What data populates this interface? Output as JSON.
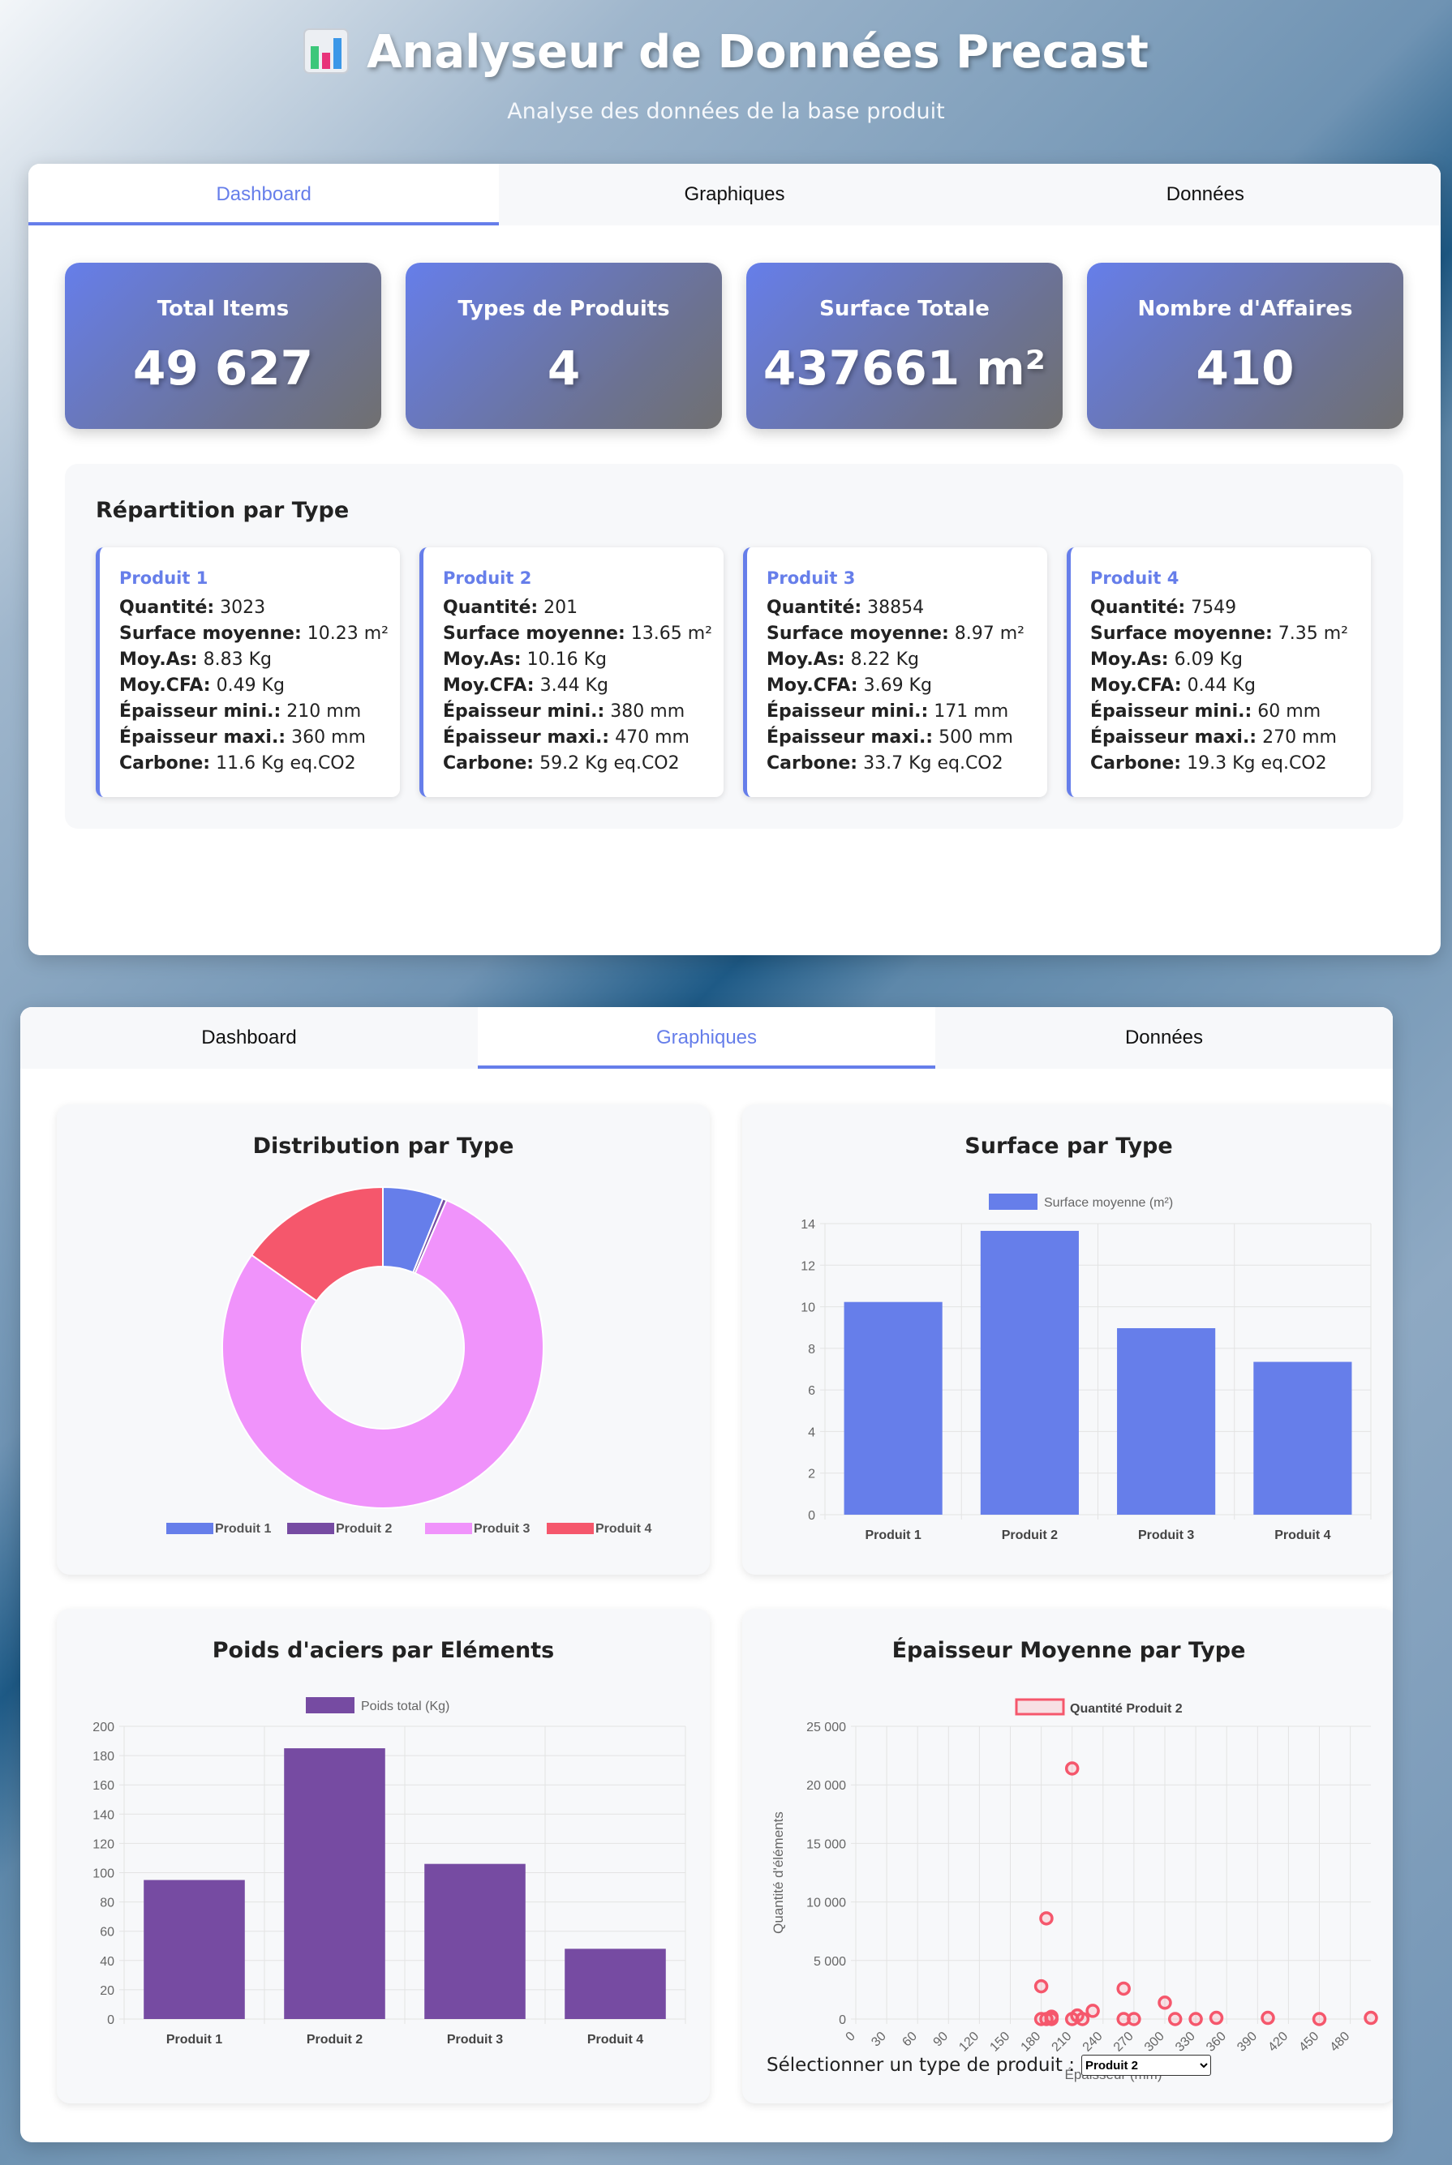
{
  "header": {
    "title": "Analyseur de Données Precast",
    "subtitle": "Analyse des données de la base produit",
    "logo_icon": "bar-chart-icon"
  },
  "tabs": [
    "Dashboard",
    "Graphiques",
    "Données"
  ],
  "stats": [
    {
      "label": "Total Items",
      "value": "49 627"
    },
    {
      "label": "Types de Produits",
      "value": "4"
    },
    {
      "label": "Surface Totale",
      "value": "437661 m²"
    },
    {
      "label": "Nombre d'Affaires",
      "value": "410"
    }
  ],
  "repartition": {
    "title": "Répartition par Type",
    "labels": {
      "quantite": "Quantité:",
      "surface": "Surface moyenne:",
      "moy_as": "Moy.As:",
      "moy_cfa": "Moy.CFA:",
      "ep_min": "Épaisseur mini.:",
      "ep_max": "Épaisseur maxi.:",
      "carbone": "Carbone:"
    },
    "types": [
      {
        "name": "Produit 1",
        "quantite": "3023",
        "surface": "10.23 m²",
        "moy_as": "8.83 Kg",
        "moy_cfa": "0.49 Kg",
        "ep_min": "210 mm",
        "ep_max": "360 mm",
        "carbone": "11.6 Kg eq.CO2"
      },
      {
        "name": "Produit 2",
        "quantite": "201",
        "surface": "13.65 m²",
        "moy_as": "10.16 Kg",
        "moy_cfa": "3.44 Kg",
        "ep_min": "380 mm",
        "ep_max": "470 mm",
        "carbone": "59.2 Kg eq.CO2"
      },
      {
        "name": "Produit 3",
        "quantite": "38854",
        "surface": "8.97 m²",
        "moy_as": "8.22 Kg",
        "moy_cfa": "3.69 Kg",
        "ep_min": "171 mm",
        "ep_max": "500 mm",
        "carbone": "33.7 Kg eq.CO2"
      },
      {
        "name": "Produit 4",
        "quantite": "7549",
        "surface": "7.35 m²",
        "moy_as": "6.09 Kg",
        "moy_cfa": "0.44 Kg",
        "ep_min": "60 mm",
        "ep_max": "270 mm",
        "carbone": "19.3 Kg eq.CO2"
      }
    ]
  },
  "colors": {
    "accent": "#667eea",
    "purple": "#764ba2",
    "pink": "#f093fb",
    "red": "#f5576c"
  },
  "chart_data": [
    {
      "type": "pie",
      "title": "Distribution par Type",
      "categories": [
        "Produit 1",
        "Produit 2",
        "Produit 3",
        "Produit 4"
      ],
      "values": [
        3023,
        201,
        38854,
        7549
      ],
      "colors": [
        "#667eea",
        "#764ba2",
        "#f093fb",
        "#f5576c"
      ],
      "legend": "bottom"
    },
    {
      "type": "bar",
      "title": "Surface par Type",
      "categories": [
        "Produit 1",
        "Produit 2",
        "Produit 3",
        "Produit 4"
      ],
      "series": [
        {
          "name": "Surface moyenne (m²)",
          "values": [
            10.23,
            13.65,
            8.97,
            7.35
          ]
        }
      ],
      "ylim": [
        0,
        14
      ],
      "yticks": [
        "0",
        "2",
        "4",
        "6",
        "8",
        "10",
        "12",
        "14"
      ],
      "color": "#667eea",
      "legend": "top"
    },
    {
      "type": "bar",
      "title": "Poids d'aciers par Eléments",
      "categories": [
        "Produit 1",
        "Produit 2",
        "Produit 3",
        "Produit 4"
      ],
      "series": [
        {
          "name": "Poids total (Kg)",
          "values": [
            95,
            185,
            106,
            48
          ]
        }
      ],
      "ylim": [
        0,
        200
      ],
      "yticks": [
        "0",
        "20",
        "40",
        "60",
        "80",
        "100",
        "120",
        "140",
        "160",
        "180",
        "200"
      ],
      "color": "#764ba2",
      "legend": "top"
    },
    {
      "type": "scatter",
      "title": "Épaisseur Moyenne par Type",
      "xlabel": "Épaisseur (mm)",
      "ylabel": "Quantité d'éléments",
      "series": [
        {
          "name": "Quantité Produit 2",
          "points": [
            [
              180,
              2800
            ],
            [
              180,
              0
            ],
            [
              185,
              8600
            ],
            [
              185,
              0
            ],
            [
              190,
              200
            ],
            [
              190,
              0
            ],
            [
              210,
              21400
            ],
            [
              210,
              0
            ],
            [
              215,
              300
            ],
            [
              220,
              0
            ],
            [
              230,
              700
            ],
            [
              260,
              2600
            ],
            [
              260,
              0
            ],
            [
              270,
              0
            ],
            [
              300,
              1400
            ],
            [
              310,
              0
            ],
            [
              330,
              0
            ],
            [
              350,
              100
            ],
            [
              400,
              100
            ],
            [
              450,
              0
            ],
            [
              500,
              100
            ]
          ]
        }
      ],
      "xlim": [
        0,
        500
      ],
      "xticks": [
        "0",
        "30",
        "60",
        "90",
        "120",
        "150",
        "180",
        "210",
        "240",
        "270",
        "300",
        "330",
        "360",
        "390",
        "420",
        "450",
        "480"
      ],
      "ylim": [
        0,
        25000
      ],
      "yticks": [
        "0",
        "5 000",
        "10 000",
        "15 000",
        "20 000",
        "25 000"
      ],
      "color": "#f5576c",
      "legend": "top"
    }
  ],
  "selector": {
    "label": "Sélectionner un type de produit :",
    "selected": "Produit 2"
  }
}
